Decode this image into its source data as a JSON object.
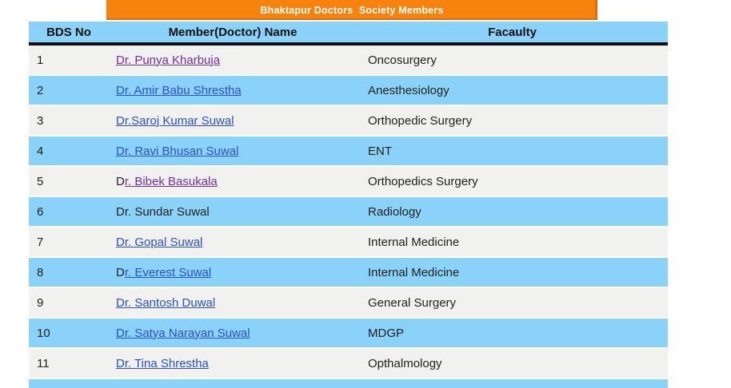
{
  "banner": {
    "title": "Bhaktapur Doctors  Society Members",
    "bg_color": "#F7820D",
    "text_color": "#ffffff"
  },
  "table": {
    "headers": [
      "BDS No",
      "Member(Doctor) Name",
      "Facaulty"
    ],
    "rows": [
      {
        "no": "1",
        "prefix": "",
        "link": "Dr. Punya Kharbuja",
        "state": "visited",
        "faculty": "Oncosurgery"
      },
      {
        "no": "2",
        "prefix": "",
        "link": "Dr. Amir Babu Shrestha",
        "state": "normal",
        "faculty": "Anesthesiology"
      },
      {
        "no": "3",
        "prefix": "",
        "link": "Dr.Saroj Kumar Suwal",
        "state": "normal",
        "faculty": "Orthopedic Surgery"
      },
      {
        "no": "4",
        "prefix": "",
        "link": "Dr. Ravi Bhusan Suwal",
        "state": "normal",
        "faculty": "ENT"
      },
      {
        "no": "5",
        "prefix": "D",
        "link": "r. Bibek Basukala",
        "state": "visited",
        "faculty": "Orthopedics Surgery"
      },
      {
        "no": "6",
        "prefix": "",
        "link": "Dr. Sundar Suwal",
        "state": "none",
        "faculty": "Radiology"
      },
      {
        "no": "7",
        "prefix": "",
        "link": "Dr. Gopal Suwal",
        "state": "normal",
        "faculty": "Internal Medicine"
      },
      {
        "no": "8",
        "prefix": "D",
        "link": "r. Everest Suwal",
        "state": "normal",
        "faculty": "Internal Medicine"
      },
      {
        "no": "9",
        "prefix": "",
        "link": "Dr. Santosh Duwal",
        "state": "normal",
        "faculty": "General Surgery"
      },
      {
        "no": "10",
        "prefix": "",
        "link": "Dr. Satya Narayan Suwal",
        "state": "normal",
        "faculty": "MDGP"
      },
      {
        "no": "11",
        "prefix": "",
        "link": "Dr. Tina Shrestha",
        "state": "normal",
        "faculty": "Opthalmology"
      }
    ]
  },
  "colors": {
    "row_alt_blue": "#8BD2F8",
    "row_gray": "#F1F1EF",
    "header_blue": "#8BD2F8",
    "divider_black": "#0D0D17",
    "link_blue": "#2B50C6",
    "link_visited_purple": "#7030A0",
    "banner_orange": "#F7820D"
  }
}
